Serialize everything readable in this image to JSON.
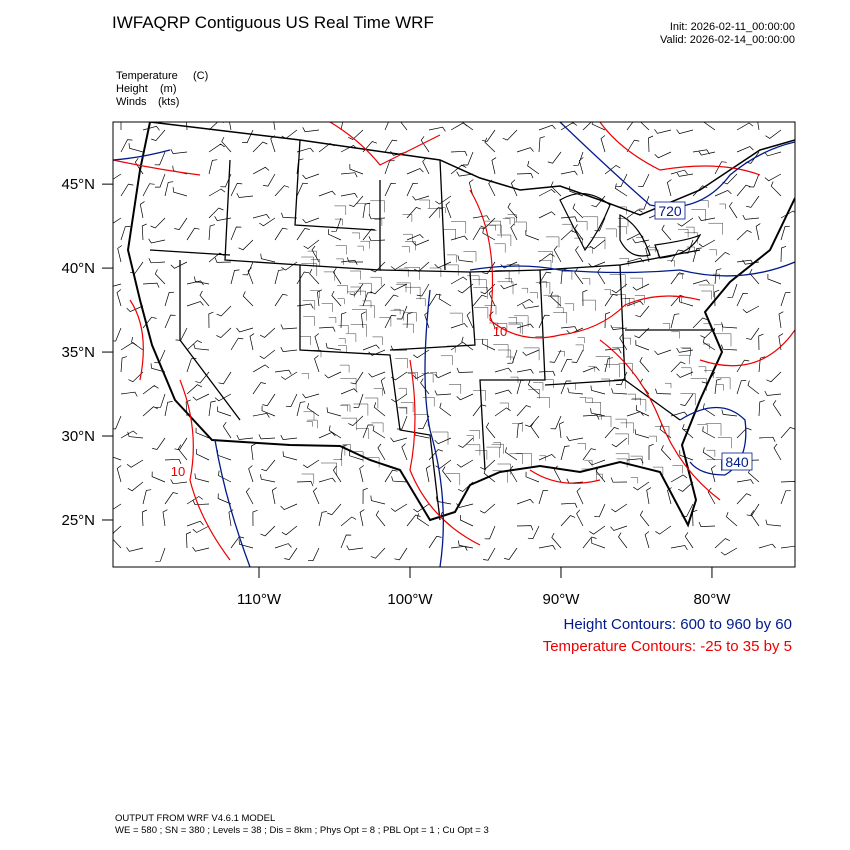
{
  "header": {
    "title": "IWFAQRP Contiguous US Real Time WRF",
    "init": "Init: 2026-02-11_00:00:00",
    "valid": "Valid: 2026-02-14_00:00:00"
  },
  "fields": [
    {
      "name": "Temperature",
      "unit": "(C)"
    },
    {
      "name": "Height",
      "unit": "(m)"
    },
    {
      "name": "Winds",
      "unit": "(kts)"
    }
  ],
  "map": {
    "lonlim": [
      -119.67,
      -74.5
    ],
    "latlim": [
      22.2,
      48.7
    ],
    "lon_ticks": [
      {
        "value": -110,
        "label": "110°W"
      },
      {
        "value": -100,
        "label": "100°W"
      },
      {
        "value": -90,
        "label": "90°W"
      },
      {
        "value": -80,
        "label": "80°W"
      }
    ],
    "lat_ticks": [
      {
        "value": 45,
        "label": "45°N"
      },
      {
        "value": 40,
        "label": "40°N"
      },
      {
        "value": 35,
        "label": "35°N"
      },
      {
        "value": 30,
        "label": "30°N"
      },
      {
        "value": 25,
        "label": "25°N"
      }
    ],
    "contour_labels": [
      "720",
      "840",
      "10",
      "10"
    ]
  },
  "legend": {
    "height": "Height Contours: 600 to 960 by 60",
    "temperature": "Temperature Contours: -25 to 35 by 5"
  },
  "footer": {
    "model": "OUTPUT FROM WRF V4.6.1 MODEL",
    "config": "WE = 580 ; SN = 380 ; Levels = 38 ; Dis = 8km ; Phys Opt = 8 ; PBL Opt = 1 ; Cu Opt = 3"
  }
}
